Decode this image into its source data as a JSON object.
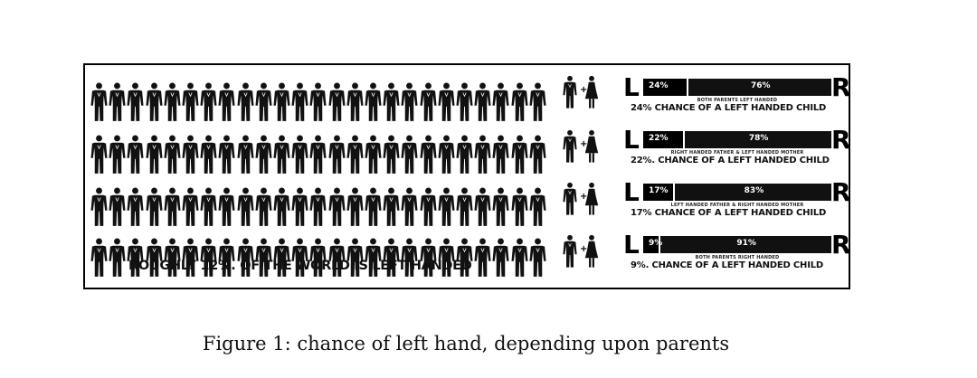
{
  "figure": {
    "caption": "Figure 1: chance of left hand, depending upon parents",
    "world_caption": "ROUGHLY 12%. OF THE WORLD IS LEFT HANDED"
  },
  "chart_data": {
    "type": "bar",
    "orientation": "horizontal-stacked",
    "left_label": "L",
    "right_label": "R",
    "rows": [
      {
        "parents": "BOTH PARENTS LEFT HANDED",
        "left_pct": 24,
        "right_pct": 76,
        "left_text": "24%",
        "right_text": "76%",
        "caption": "24% CHANCE OF A LEFT HANDED CHILD"
      },
      {
        "parents": "RIGHT HANDED FATHER & LEFT HANDED MOTHER",
        "left_pct": 22,
        "right_pct": 78,
        "left_text": "22%",
        "right_text": "78%",
        "caption": "22%. CHANCE OF A LEFT HANDED CHILD"
      },
      {
        "parents": "LEFT HANDED FATHER & RIGHT HANDED MOTHER",
        "left_pct": 17,
        "right_pct": 83,
        "left_text": "17%",
        "right_text": "83%",
        "caption": "17% CHANCE OF A LEFT HANDED CHILD"
      },
      {
        "parents": "BOTH PARENTS RIGHT HANDED",
        "left_pct": 9,
        "right_pct": 91,
        "left_text": "9%",
        "right_text": "91%",
        "caption": "9%. CHANCE OF A LEFT HANDED CHILD"
      }
    ],
    "pictogram": {
      "rows": 4,
      "per_row": 25,
      "icon": "person-icon"
    }
  },
  "colors": {
    "bar": "#000000",
    "icon": "#111111"
  }
}
